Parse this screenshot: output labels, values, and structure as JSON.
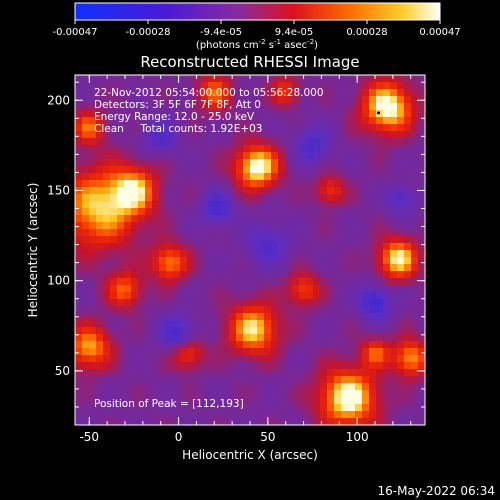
{
  "colorbar": {
    "ticks": [
      "-0.00047",
      "-0.00028",
      "-9.4e-05",
      "9.4e-05",
      "0.00028",
      "0.00047"
    ],
    "unit_prefix": "(photons cm",
    "unit_exp1": "-2",
    "unit_mid": " s",
    "unit_exp2": "-1",
    "unit_tail": " asec",
    "unit_exp3": "-2",
    "unit_end": ")",
    "range": [
      -0.00047,
      0.00047
    ]
  },
  "chart_data": {
    "type": "heatmap",
    "title": "Reconstructed RHESSI Image",
    "xlabel": "Heliocentric X (arcsec)",
    "ylabel": "Heliocentric Y (arcsec)",
    "xlim": [
      -58,
      138
    ],
    "ylim": [
      20,
      214
    ],
    "xticks": [
      "-50",
      "0",
      "50",
      "100"
    ],
    "yticks": [
      "50",
      "100",
      "150",
      "200"
    ],
    "xtick_values": [
      -50,
      0,
      50,
      100
    ],
    "ytick_values": [
      50,
      100,
      150,
      200
    ],
    "colormap": "rainbow: blue-purple-red-orange-yellow-white",
    "info_lines": [
      "22-Nov-2012 05:54:00.000 to 05:56:28.000",
      "Detectors: 3F 5F 6F 7F 8F, Att 0",
      "Energy Range: 12.0 - 25.0 keV",
      "Clean     Total counts: 1.92E+03"
    ],
    "peak_label": "Position of Peak = [112,193]",
    "peak": [
      112,
      193
    ],
    "blobs": [
      {
        "x": 117,
        "y": 196,
        "r": 14,
        "v": 1.0
      },
      {
        "x": 44,
        "y": 163,
        "r": 12,
        "v": 1.0
      },
      {
        "x": 95,
        "y": 35,
        "r": 16,
        "v": 1.0
      },
      {
        "x": 123,
        "y": 112,
        "r": 11,
        "v": 0.9
      },
      {
        "x": 42,
        "y": 73,
        "r": 14,
        "v": 0.85
      },
      {
        "x": -50,
        "y": 63,
        "r": 12,
        "v": 0.75
      },
      {
        "x": 130,
        "y": 57,
        "r": 10,
        "v": 0.75
      },
      {
        "x": -45,
        "y": 140,
        "r": 22,
        "v": 0.8
      },
      {
        "x": -25,
        "y": 150,
        "r": 13,
        "v": 0.7
      },
      {
        "x": -5,
        "y": 110,
        "r": 10,
        "v": 0.7
      },
      {
        "x": 20,
        "y": 204,
        "r": 10,
        "v": 0.6
      },
      {
        "x": 5,
        "y": 60,
        "r": 9,
        "v": 0.6
      },
      {
        "x": 70,
        "y": 95,
        "r": 9,
        "v": 0.55
      },
      {
        "x": 85,
        "y": 150,
        "r": 8,
        "v": 0.5
      },
      {
        "x": 60,
        "y": 205,
        "r": 8,
        "v": 0.5
      },
      {
        "x": -30,
        "y": 95,
        "r": 10,
        "v": 0.6
      },
      {
        "x": 110,
        "y": 60,
        "r": 8,
        "v": 0.55
      },
      {
        "x": -50,
        "y": 185,
        "r": 9,
        "v": 0.6
      },
      {
        "x": 22,
        "y": 140,
        "r": 9,
        "v": -0.5
      },
      {
        "x": 110,
        "y": 88,
        "r": 9,
        "v": -0.6
      },
      {
        "x": 0,
        "y": 70,
        "r": 10,
        "v": -0.55
      },
      {
        "x": 50,
        "y": 120,
        "r": 12,
        "v": -0.4
      },
      {
        "x": 75,
        "y": 175,
        "r": 10,
        "v": -0.45
      },
      {
        "x": -10,
        "y": 180,
        "r": 10,
        "v": -0.4
      },
      {
        "x": 125,
        "y": 145,
        "r": 8,
        "v": -0.4
      }
    ]
  },
  "footer": {
    "timestamp": "16-May-2022 06:34"
  }
}
